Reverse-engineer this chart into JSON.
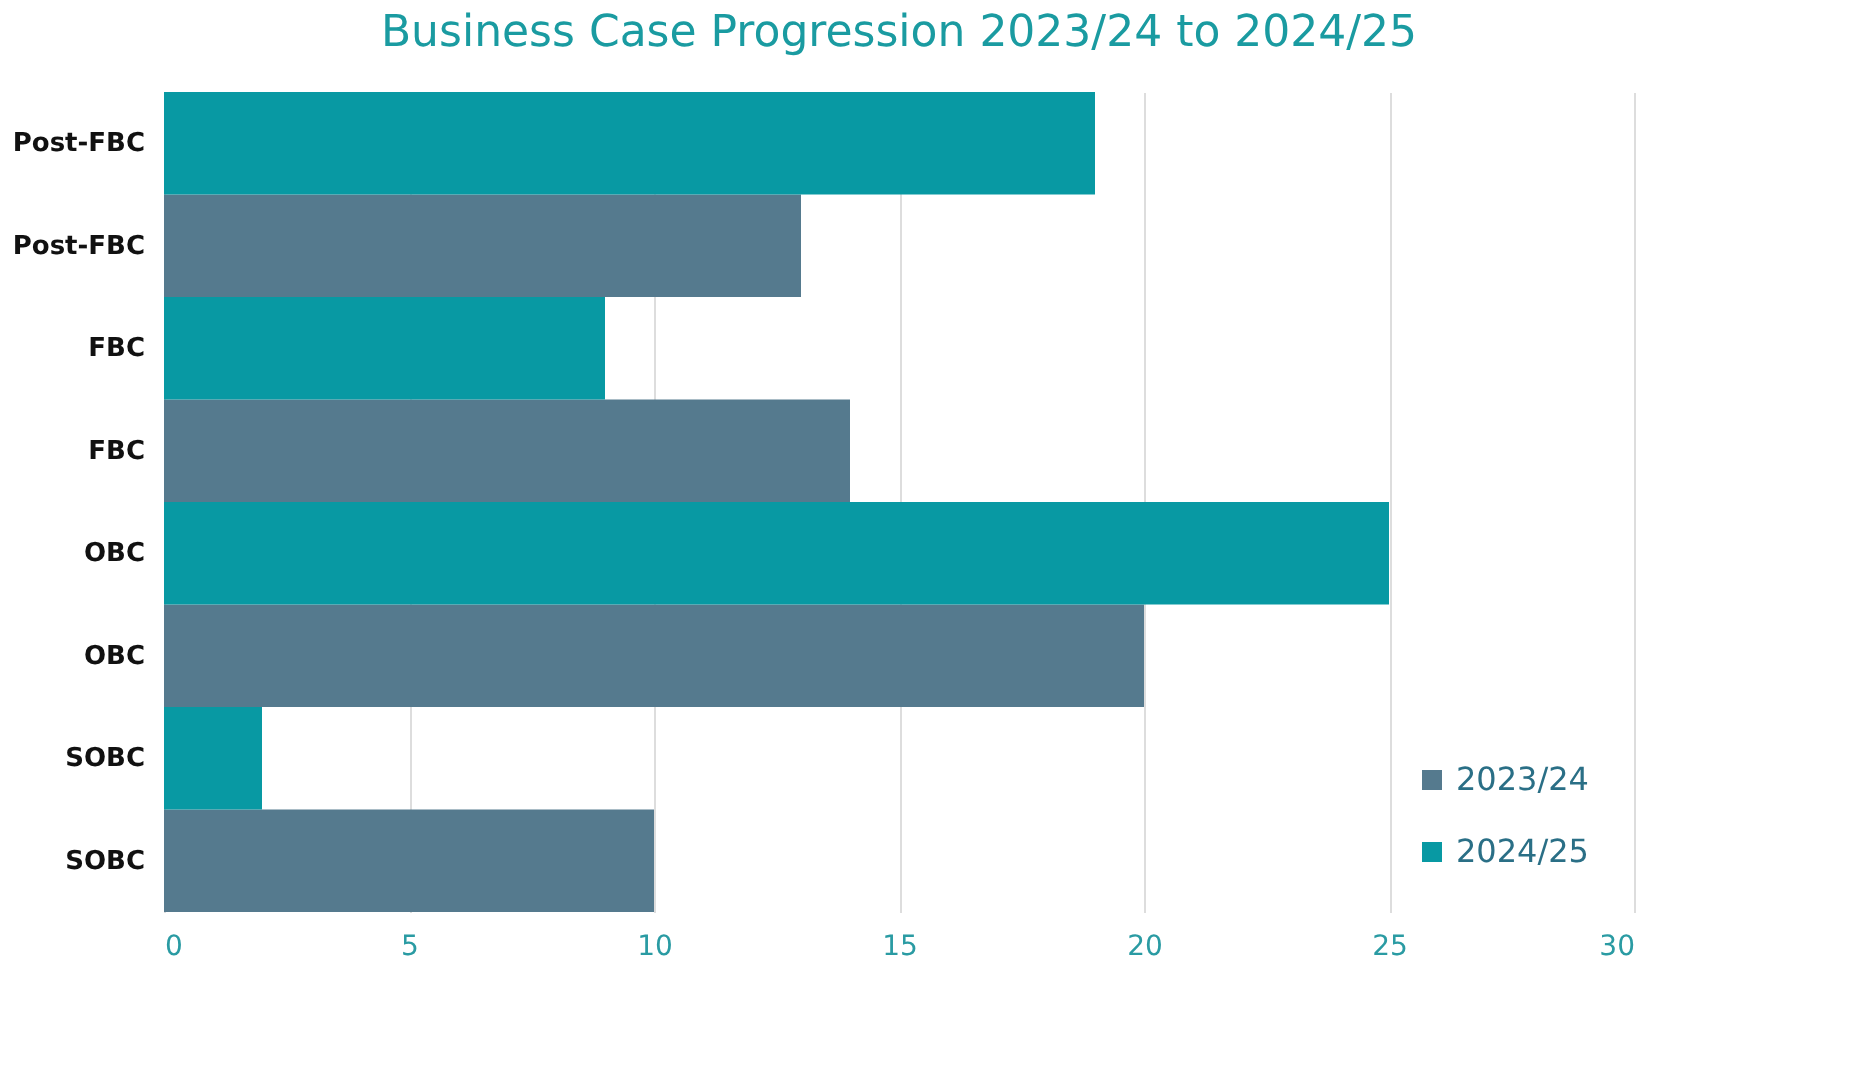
{
  "chart_data": {
    "type": "bar",
    "orientation": "horizontal",
    "title": "Business Case Progression 2023/24 to 2024/25",
    "categories": [
      "Post-FBC",
      "Post-FBC",
      "FBC",
      "FBC",
      "OBC",
      "OBC",
      "SOBC",
      "SOBC"
    ],
    "series": [
      {
        "name": "2023/24",
        "color": "#557a8e",
        "values": [
          null,
          13,
          null,
          14,
          null,
          20,
          null,
          10
        ]
      },
      {
        "name": "2024/25",
        "color": "#0899a3",
        "values": [
          19,
          null,
          9,
          null,
          25,
          null,
          2,
          null
        ]
      }
    ],
    "xlim": [
      0,
      30
    ],
    "xticks": [
      0,
      5,
      10,
      15,
      20,
      25,
      30
    ],
    "grid": "x",
    "legend": "bottom right"
  }
}
